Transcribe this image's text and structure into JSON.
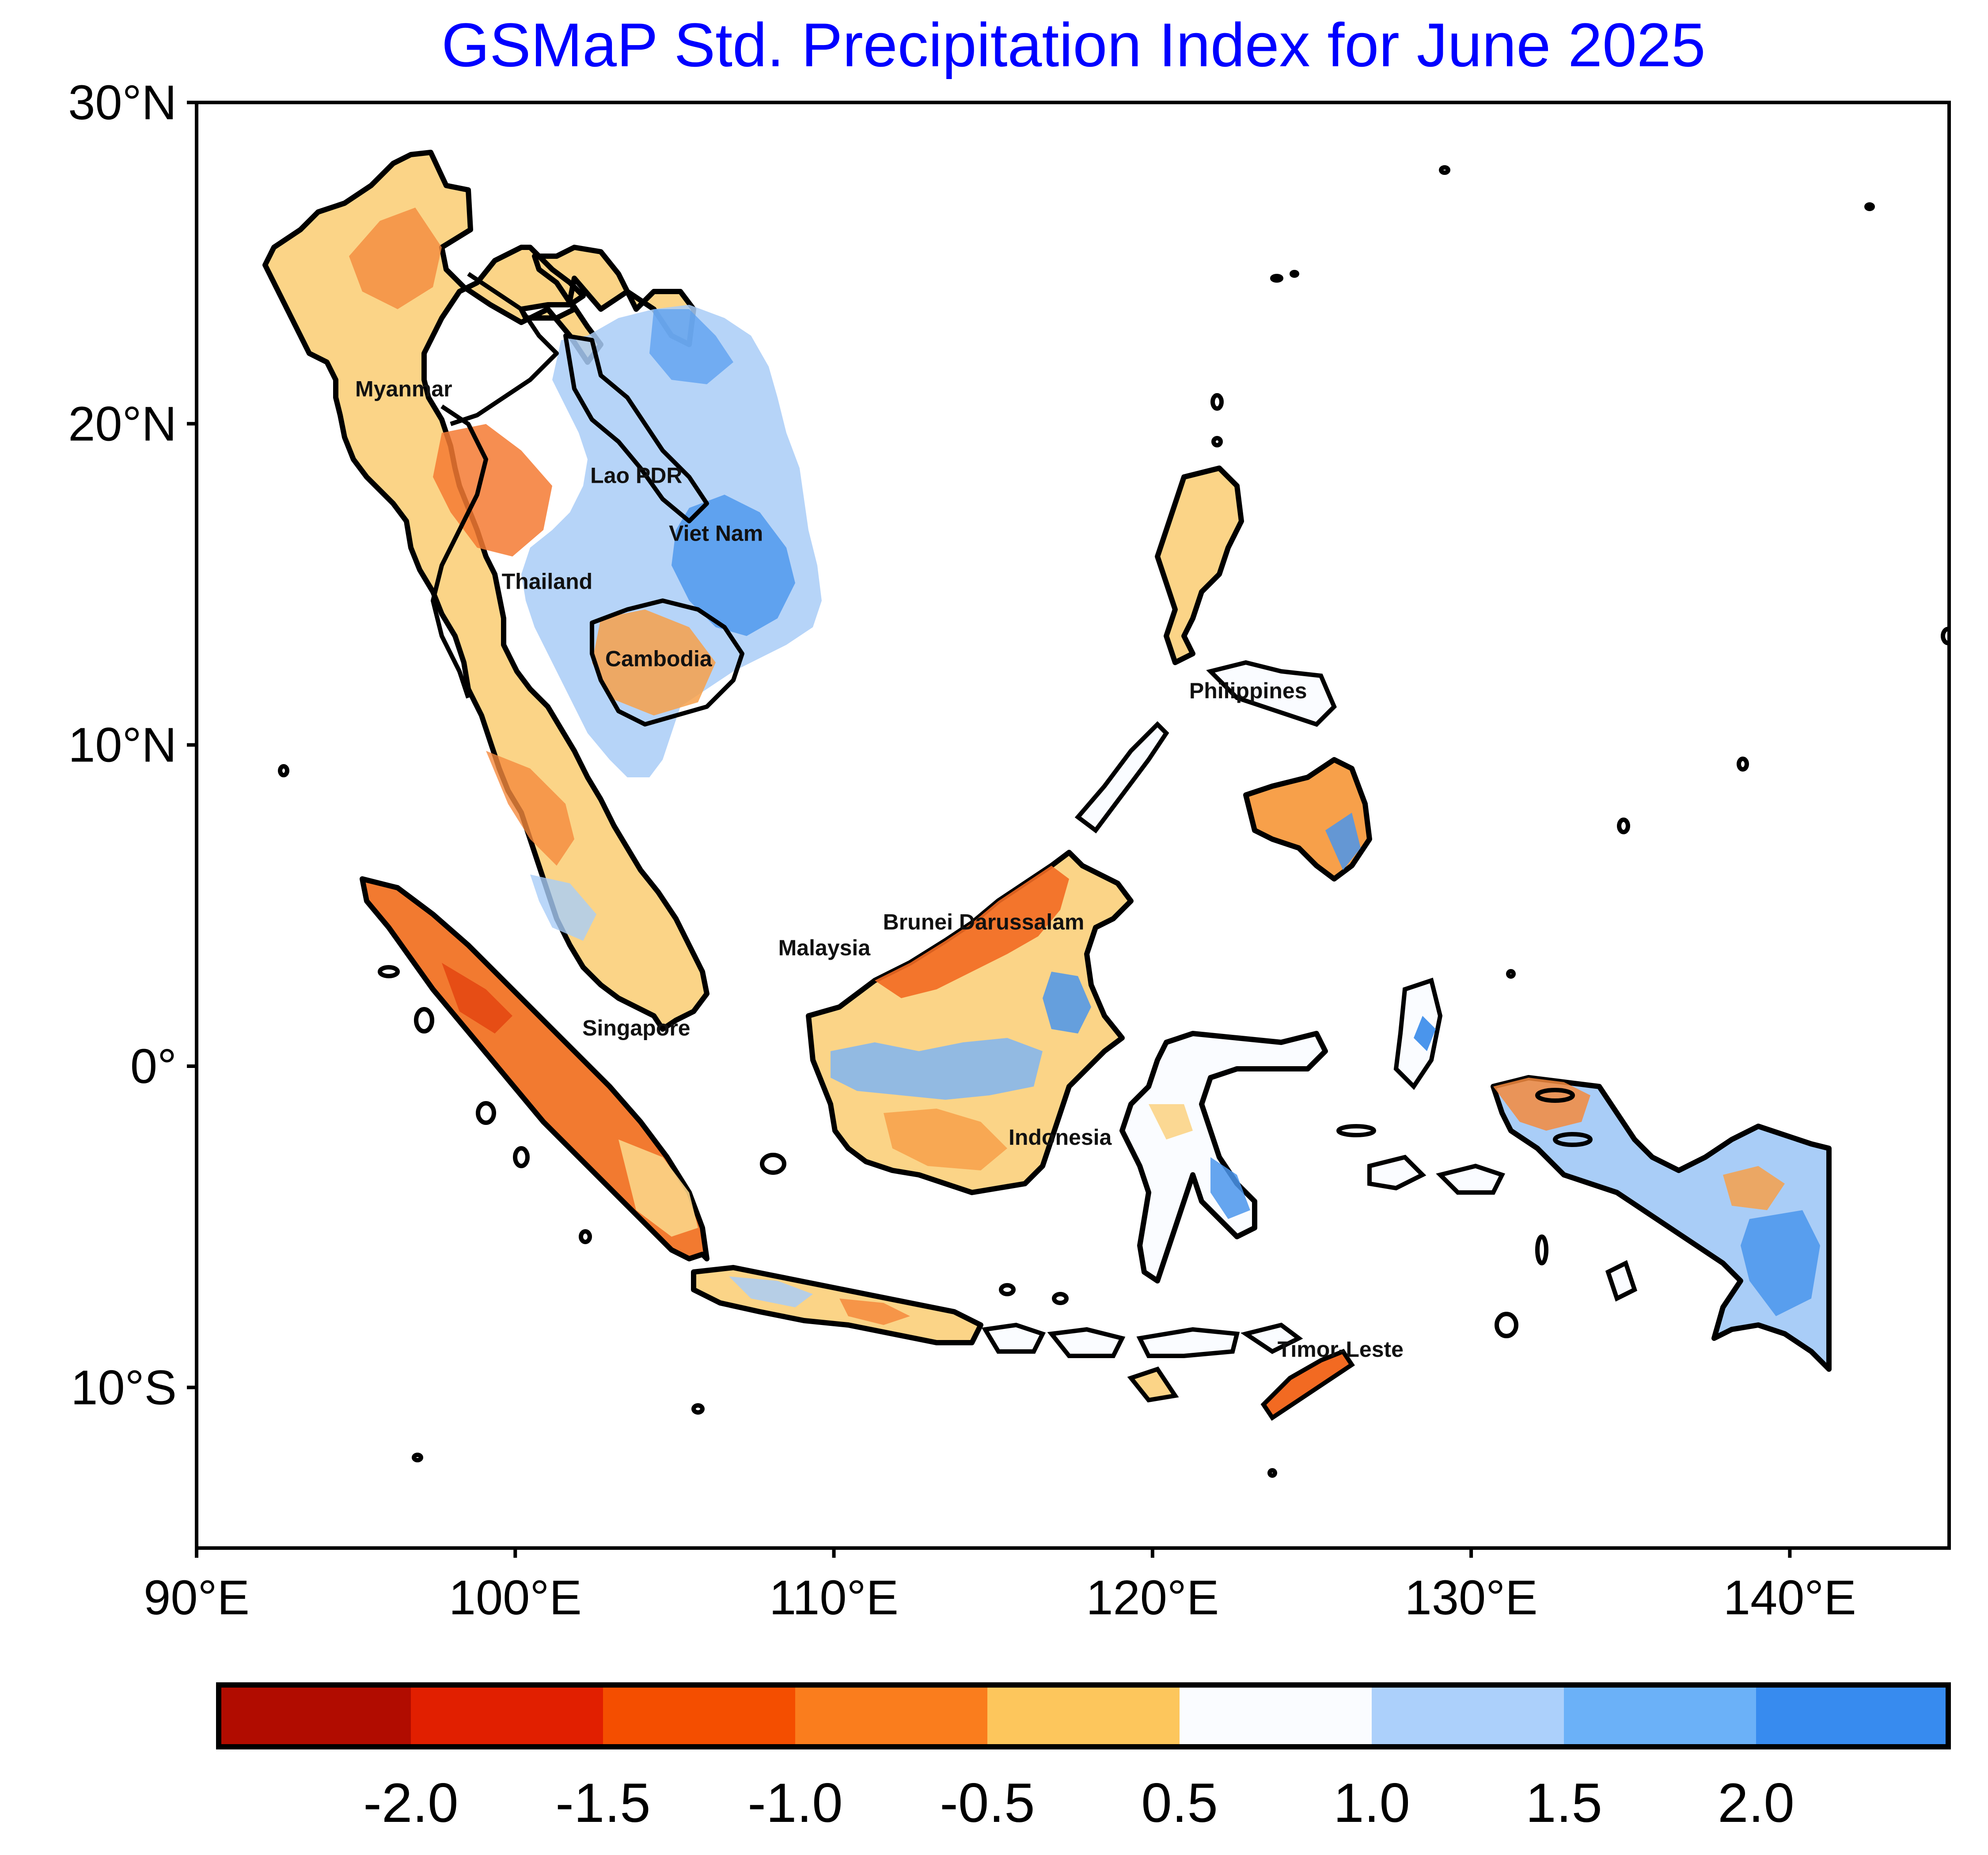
{
  "title": "GSMaP Std. Precipitation Index for June 2025",
  "title_color": "#0000ff",
  "map": {
    "lon_range": [
      90,
      145
    ],
    "lat_range": [
      -15,
      30
    ],
    "x_ticks": [
      {
        "lon": 90,
        "label": "90°E"
      },
      {
        "lon": 100,
        "label": "100°E"
      },
      {
        "lon": 110,
        "label": "110°E"
      },
      {
        "lon": 120,
        "label": "120°E"
      },
      {
        "lon": 130,
        "label": "130°E"
      },
      {
        "lon": 140,
        "label": "140°E"
      }
    ],
    "y_ticks": [
      {
        "lat": 30,
        "label": "30°N"
      },
      {
        "lat": 20,
        "label": "20°N"
      },
      {
        "lat": 10,
        "label": "10°N"
      },
      {
        "lat": 0,
        "label": "0°"
      },
      {
        "lat": -10,
        "label": "10°S"
      }
    ],
    "countries": [
      {
        "name": "Myanmar",
        "lon": 96.5,
        "lat": 21.1
      },
      {
        "name": "Lao PDR",
        "lon": 103.8,
        "lat": 18.4
      },
      {
        "name": "Viet Nam",
        "lon": 106.3,
        "lat": 16.6
      },
      {
        "name": "Thailand",
        "lon": 101.0,
        "lat": 15.1
      },
      {
        "name": "Cambodia",
        "lon": 104.5,
        "lat": 12.7
      },
      {
        "name": "Philippines",
        "lon": 123.0,
        "lat": 11.7
      },
      {
        "name": "Brunei Darussalam",
        "lon": 114.7,
        "lat": 4.5
      },
      {
        "name": "Malaysia",
        "lon": 109.7,
        "lat": 3.7
      },
      {
        "name": "Singapore",
        "lon": 103.8,
        "lat": 1.2
      },
      {
        "name": "Indonesia",
        "lon": 117.1,
        "lat": -2.2
      },
      {
        "name": "Timor-Leste",
        "lon": 125.9,
        "lat": -8.8
      }
    ]
  },
  "colorbar": {
    "colors": [
      "#b10c00",
      "#e11f00",
      "#f44e00",
      "#fa7d1d",
      "#fdc65c",
      "#fafcff",
      "#acd0fb",
      "#6bb1f8",
      "#378bef"
    ],
    "boundaries": [
      -2.5,
      -2.0,
      -1.5,
      -1.0,
      -0.5,
      0.5,
      1.0,
      1.5,
      2.0,
      2.5
    ],
    "tick_labels": [
      "-2.0",
      "-1.5",
      "-1.0",
      "-0.5",
      "0.5",
      "1.0",
      "1.5",
      "2.0"
    ]
  }
}
